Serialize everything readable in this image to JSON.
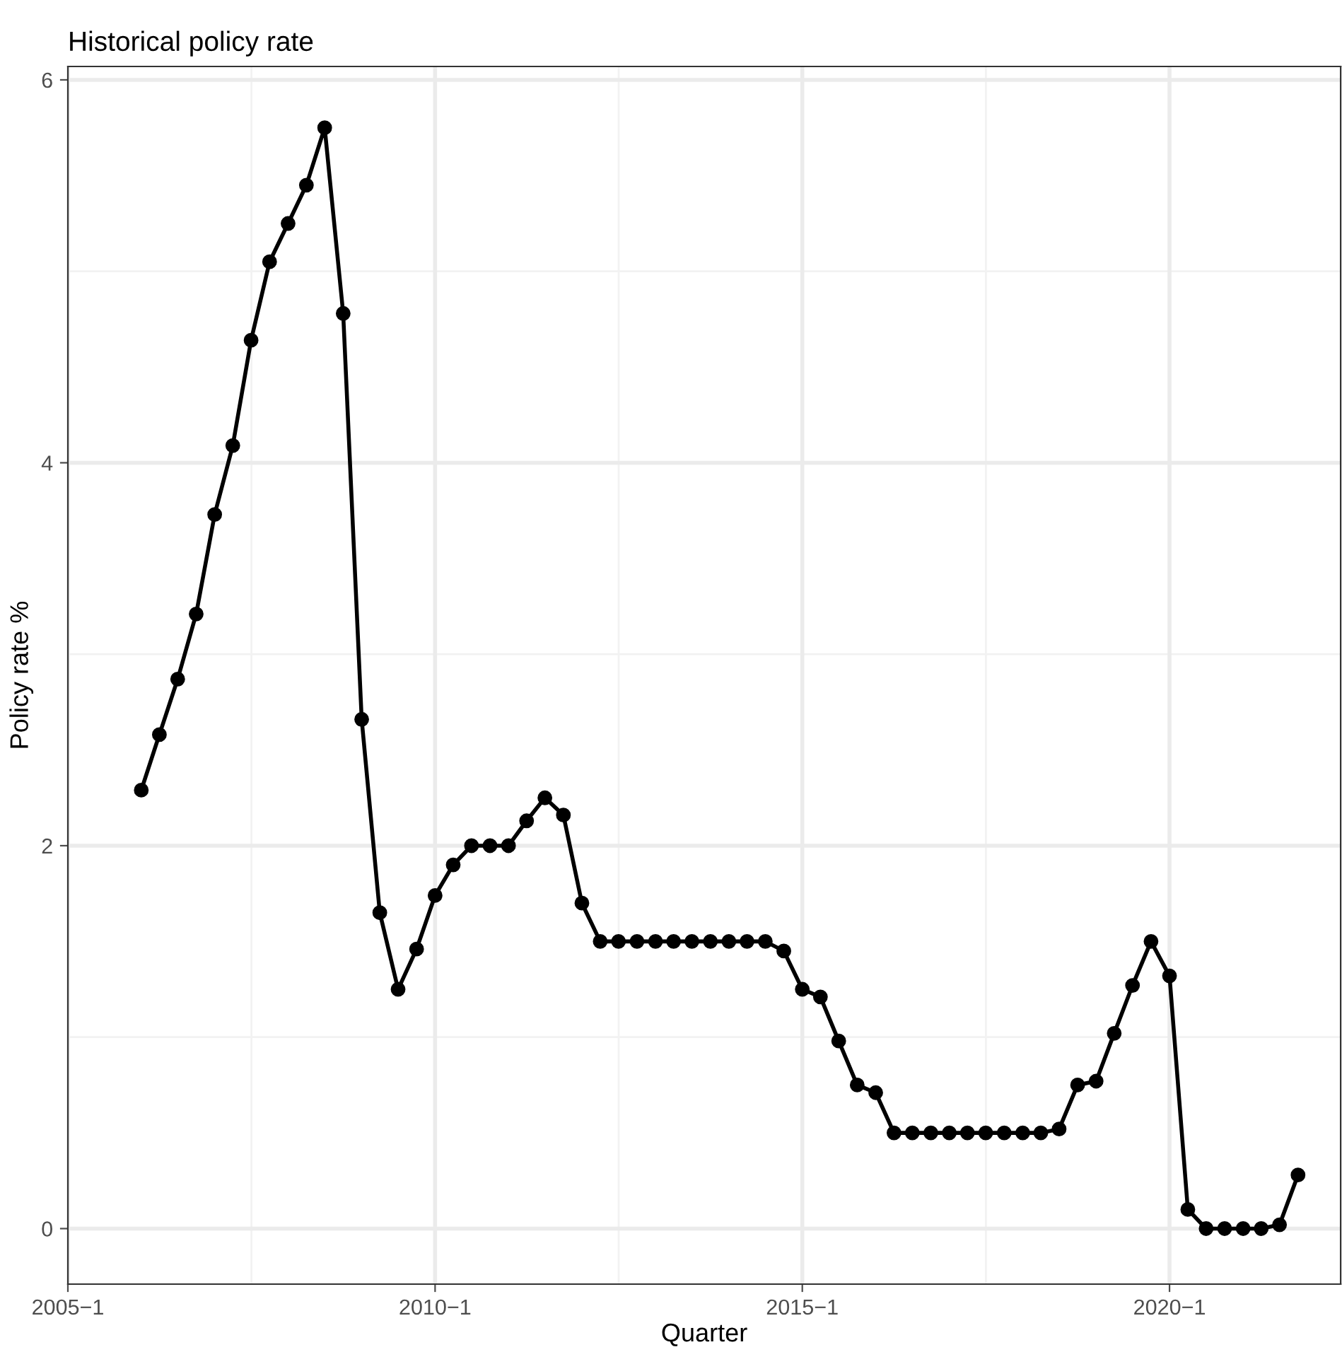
{
  "chart_data": {
    "type": "line",
    "title": "Historical policy rate",
    "xlabel": "Quarter",
    "ylabel": "Policy rate %",
    "x": [
      "2006-01",
      "2006-04",
      "2006-07",
      "2006-10",
      "2007-01",
      "2007-04",
      "2007-07",
      "2007-10",
      "2008-01",
      "2008-04",
      "2008-07",
      "2008-10",
      "2009-01",
      "2009-04",
      "2009-07",
      "2009-10",
      "2010-01",
      "2010-04",
      "2010-07",
      "2010-10",
      "2011-01",
      "2011-04",
      "2011-07",
      "2011-10",
      "2012-01",
      "2012-04",
      "2012-07",
      "2012-10",
      "2013-01",
      "2013-04",
      "2013-07",
      "2013-10",
      "2014-01",
      "2014-04",
      "2014-07",
      "2014-10",
      "2015-01",
      "2015-04",
      "2015-07",
      "2015-10",
      "2016-01",
      "2016-04",
      "2016-07",
      "2016-10",
      "2017-01",
      "2017-04",
      "2017-07",
      "2017-10",
      "2018-01",
      "2018-04",
      "2018-07",
      "2018-10",
      "2019-01",
      "2019-04",
      "2019-07",
      "2019-10",
      "2020-01",
      "2020-04",
      "2020-07",
      "2020-10",
      "2021-01",
      "2021-04",
      "2021-07",
      "2021-10"
    ],
    "series": [
      {
        "color": "#000000",
        "values": [
          2.29,
          2.58,
          2.87,
          3.21,
          3.73,
          4.09,
          4.64,
          5.05,
          5.25,
          5.45,
          5.75,
          4.78,
          2.66,
          1.65,
          1.25,
          1.46,
          1.74,
          1.9,
          2.0,
          2.0,
          2.0,
          2.13,
          2.25,
          2.16,
          1.7,
          1.5,
          1.5,
          1.5,
          1.5,
          1.5,
          1.5,
          1.5,
          1.5,
          1.5,
          1.5,
          1.45,
          1.25,
          1.21,
          0.98,
          0.75,
          0.71,
          0.5,
          0.5,
          0.5,
          0.5,
          0.5,
          0.5,
          0.5,
          0.5,
          0.5,
          0.52,
          0.75,
          0.77,
          1.02,
          1.27,
          1.5,
          1.32,
          0.1,
          0,
          0,
          0,
          0,
          0.02,
          0.28
        ]
      }
    ],
    "xlim": [
      "2005-01",
      "2022-05"
    ],
    "ylim": [
      -0.29,
      6.07
    ],
    "xticks": [
      {
        "value": "2005-01",
        "label": "2005−1"
      },
      {
        "value": "2010-01",
        "label": "2010−1"
      },
      {
        "value": "2015-01",
        "label": "2015−1"
      },
      {
        "value": "2020-01",
        "label": "2020−1"
      }
    ],
    "yticks": [
      0,
      2,
      4,
      6
    ],
    "grid": true,
    "marker": "circle",
    "line_style": "solid",
    "legend": false
  }
}
